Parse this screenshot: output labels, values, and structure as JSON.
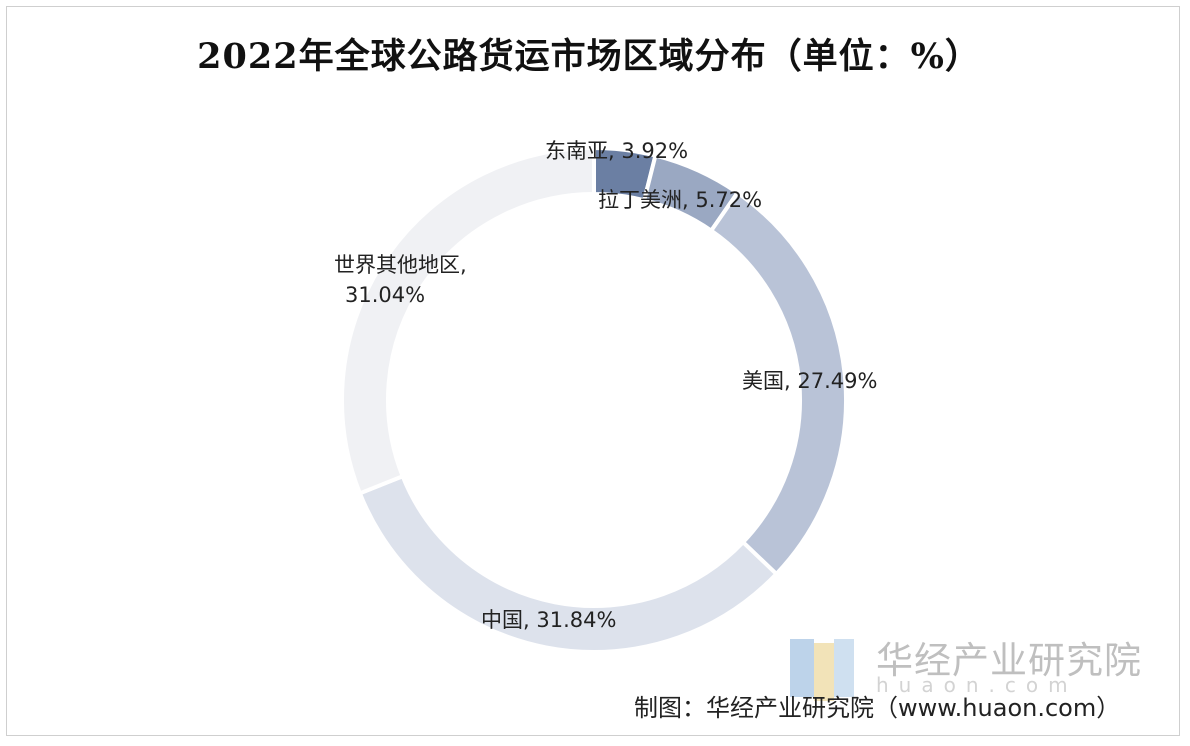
{
  "chart_data": {
    "type": "pie",
    "style": "donut",
    "title": "2022年全球公路货运市场区域分布（单位：%）",
    "slices": [
      {
        "name": "东南亚",
        "value": 3.92,
        "label": "东南亚, 3.92%",
        "color": "#6b7fa3"
      },
      {
        "name": "拉丁美洲",
        "value": 5.72,
        "label": "拉丁美洲, 5.72%",
        "color": "#9aa8c2"
      },
      {
        "name": "美国",
        "value": 27.49,
        "label": "美国, 27.49%",
        "color": "#b9c3d7"
      },
      {
        "name": "中国",
        "value": 31.84,
        "label": "中国, 31.84%",
        "color": "#dde2ec"
      },
      {
        "name": "世界其他地区",
        "value": 31.04,
        "label_line1": "世界其他地区,",
        "label_line2": "31.04%",
        "color": "#f0f1f4"
      }
    ]
  },
  "watermark": {
    "name": "华经产业研究院",
    "url": "huaon.com"
  },
  "source": "制图：华经产业研究院（www.huaon.com）"
}
